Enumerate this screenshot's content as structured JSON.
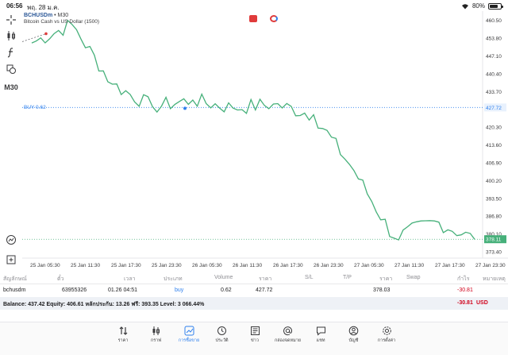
{
  "statusbar": {
    "time": "06:56",
    "date": "พฤ. 28 ม.ค.",
    "battery": "80%"
  },
  "toolbar": {
    "timeframe": "M30"
  },
  "chart": {
    "symbol": "BCHUSDm",
    "timeframe_suffix": " • M30",
    "description": "Bitcoin Cash vs US Dollar (1500)",
    "buy_label": "BUY 0.62",
    "price_ticks": [
      "460.50",
      "453.80",
      "447.10",
      "440.40",
      "433.70",
      "427.72",
      "420.30",
      "413.60",
      "406.90",
      "400.20",
      "393.50",
      "386.80",
      "380.10",
      "378.11",
      "373.40"
    ],
    "time_ticks": [
      "25 Jan 05:30",
      "25 Jan 11:30",
      "25 Jan 17:30",
      "25 Jan 23:30",
      "26 Jan 05:30",
      "26 Jan 11:30",
      "26 Jan 17:30",
      "26 Jan 23:30",
      "27 Jan 05:30",
      "27 Jan 11:30",
      "27 Jan 17:30",
      "27 Jan 23:30"
    ],
    "colors": {
      "line": "#46b07a",
      "buy": "#2f80ed",
      "bid": "#46b07a"
    }
  },
  "chart_data": {
    "type": "line",
    "title": "BCHUSDm • M30",
    "xlabel": "",
    "ylabel": "",
    "ylim": [
      371.0,
      464.0
    ],
    "x": [
      "25 Jan 05:30",
      "25 Jan 11:30",
      "25 Jan 17:30",
      "25 Jan 23:30",
      "26 Jan 05:30",
      "26 Jan 11:30",
      "26 Jan 17:30",
      "26 Jan 23:30",
      "27 Jan 05:30",
      "27 Jan 11:30",
      "27 Jan 17:30",
      "27 Jan 23:30"
    ],
    "series": [
      {
        "name": "",
        "values": [
          452.0,
          459.0,
          436.5,
          428.0,
          430.5,
          427.5,
          429.0,
          425.0,
          404.0,
          378.5,
          385.0,
          378.1
        ]
      }
    ],
    "buy_level": 427.72,
    "bid_level": 378.11,
    "grid": false
  },
  "table": {
    "headers": [
      "สัญลักษณ์",
      "ตั๋ว",
      "เวลา",
      "ประเภท",
      "Volume",
      "ราคา",
      "S/L",
      "T/P",
      "ราคา",
      "Swap",
      "กำไร",
      "หมายเหตุ"
    ],
    "row": {
      "symbol": "bchusdm",
      "ticket": "63955326",
      "time": "01.26 04:51",
      "type": "buy",
      "volume": "0.62",
      "open_price": "427.72",
      "sl": "",
      "tp": "",
      "price": "378.03",
      "swap": "",
      "profit": "-30.81",
      "comment": ""
    },
    "balance_text": "Balance: 437.42 Equity: 406.61 หลักประกัน: 13.26 ฟรี: 393.35 Level: 3 066.44%",
    "balance_profit": "-30.81",
    "currency": "USD"
  },
  "tabs": [
    {
      "label": "ราคา",
      "icon": "arrows-updown-icon"
    },
    {
      "label": "กราฟ",
      "icon": "candles-icon"
    },
    {
      "label": "การซื้อขาย",
      "icon": "trade-chart-icon"
    },
    {
      "label": "ประวัติ",
      "icon": "history-icon"
    },
    {
      "label": "ข่าว",
      "icon": "news-icon"
    },
    {
      "label": "กล่องจดหมาย",
      "icon": "mailbox-icon"
    },
    {
      "label": "แชท",
      "icon": "chat-icon"
    },
    {
      "label": "บัญชี",
      "icon": "account-icon"
    },
    {
      "label": "การตั้งค่า",
      "icon": "settings-icon"
    }
  ]
}
